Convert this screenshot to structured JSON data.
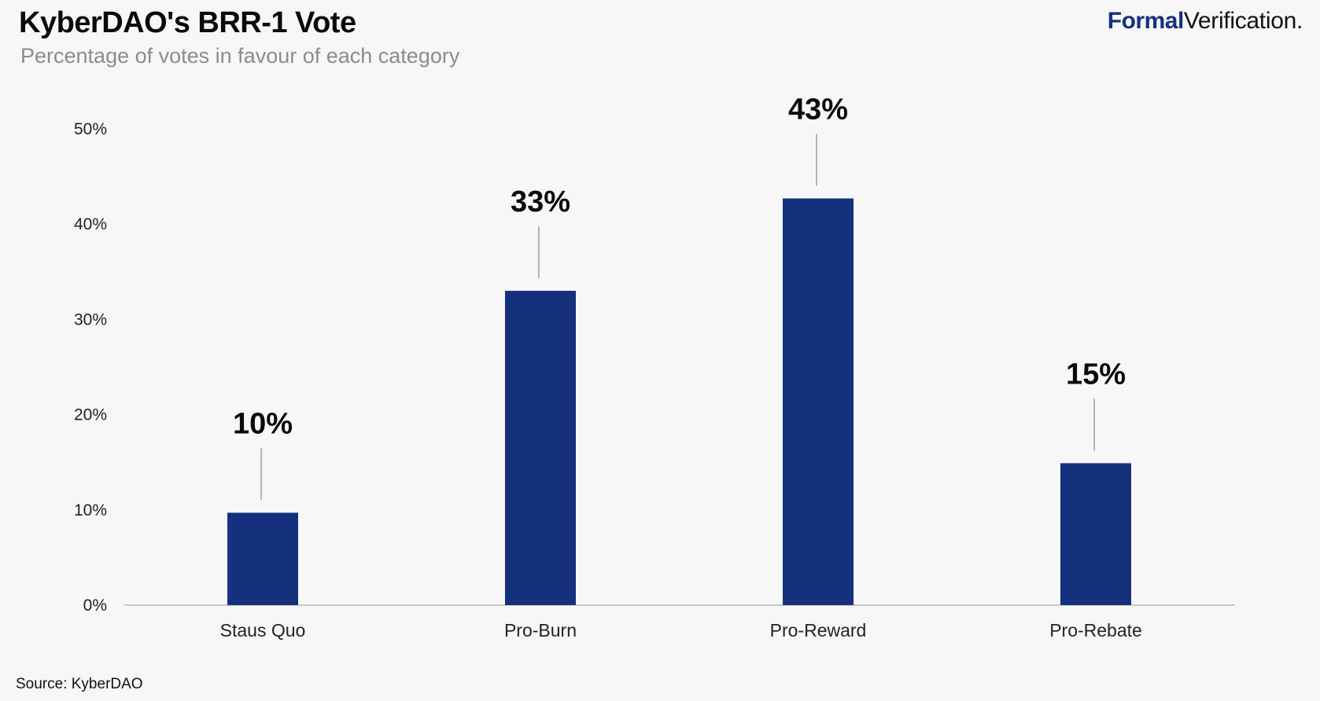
{
  "header": {
    "title": "KyberDAO's BRR-1 Vote",
    "subtitle": "Percentage of votes in favour of each category"
  },
  "brand": {
    "bold": "Formal",
    "regular": "Verification."
  },
  "footer": {
    "source": "Source: KyberDAO"
  },
  "colors": {
    "bar": "#15317e",
    "axis": "#bbbbbb",
    "leader": "#888888",
    "background": "#f7f7f7"
  },
  "chart_data": {
    "type": "bar",
    "categories": [
      "Staus Quo",
      "Pro-Burn",
      "Pro-Reward",
      "Pro-Rebate"
    ],
    "values": [
      9.7,
      33,
      42.7,
      14.9
    ],
    "data_labels": [
      "10%",
      "33%",
      "43%",
      "15%"
    ],
    "yticks": [
      0,
      10,
      20,
      30,
      40,
      50
    ],
    "ytick_labels": [
      "0%",
      "10%",
      "20%",
      "30%",
      "40%",
      "50%"
    ],
    "ylim": [
      0,
      50
    ],
    "grid": false,
    "legend": "none"
  }
}
